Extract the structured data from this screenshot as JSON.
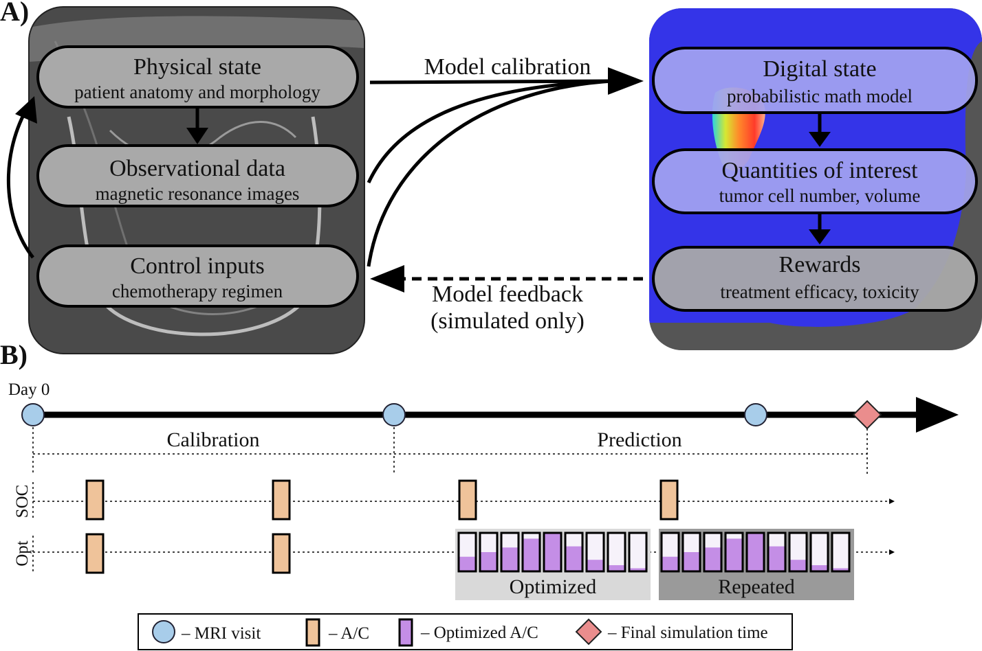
{
  "panel_a": {
    "label": "A)",
    "left_boxes": [
      {
        "title": "Physical state",
        "subtitle": "patient anatomy and morphology"
      },
      {
        "title": "Observational data",
        "subtitle": "magnetic resonance images"
      },
      {
        "title": "Control inputs",
        "subtitle": "chemotherapy regimen"
      }
    ],
    "right_boxes": [
      {
        "title": "Digital state",
        "subtitle": "probabilistic math model"
      },
      {
        "title": "Quantities of interest",
        "subtitle": "tumor cell number, volume"
      },
      {
        "title": "Rewards",
        "subtitle": "treatment efficacy, toxicity"
      }
    ],
    "calibration_label": "Model calibration",
    "feedback_label_line1": "Model feedback",
    "feedback_label_line2": "(simulated only)"
  },
  "panel_b": {
    "label": "B)",
    "day0": "Day 0",
    "calibration_label": "Calibration",
    "prediction_label": "Prediction",
    "soc_label": "SOC",
    "opt_label": "Opt",
    "optimized_label": "Optimized",
    "repeated_label": "Repeated",
    "optimized_fill_fractions": [
      0.38,
      0.5,
      0.62,
      0.85,
      1.0,
      0.65,
      0.3,
      0.16,
      0.08
    ],
    "repeated_fill_fractions": [
      0.38,
      0.5,
      0.62,
      0.85,
      1.0,
      0.65,
      0.3,
      0.16,
      0.08
    ]
  },
  "legend": {
    "mri": "– MRI visit",
    "ac": "– A/C",
    "opt_ac": "– Optimized A/C",
    "final": "– Final simulation time"
  },
  "colors": {
    "mri_fill": "#a8cdea",
    "ac_fill": "#efc39a",
    "opt_fill": "#c48ee6",
    "final_fill": "#ea8d8d",
    "left_panel_bg": "#4a4a4a",
    "pill_fill": "#a9a9a9",
    "right_panel_blue": "#3434e8",
    "right_pill_fill": "#a3a3f0",
    "optimized_band": "#d9d9d9",
    "repeated_band": "#9a9a9a"
  }
}
